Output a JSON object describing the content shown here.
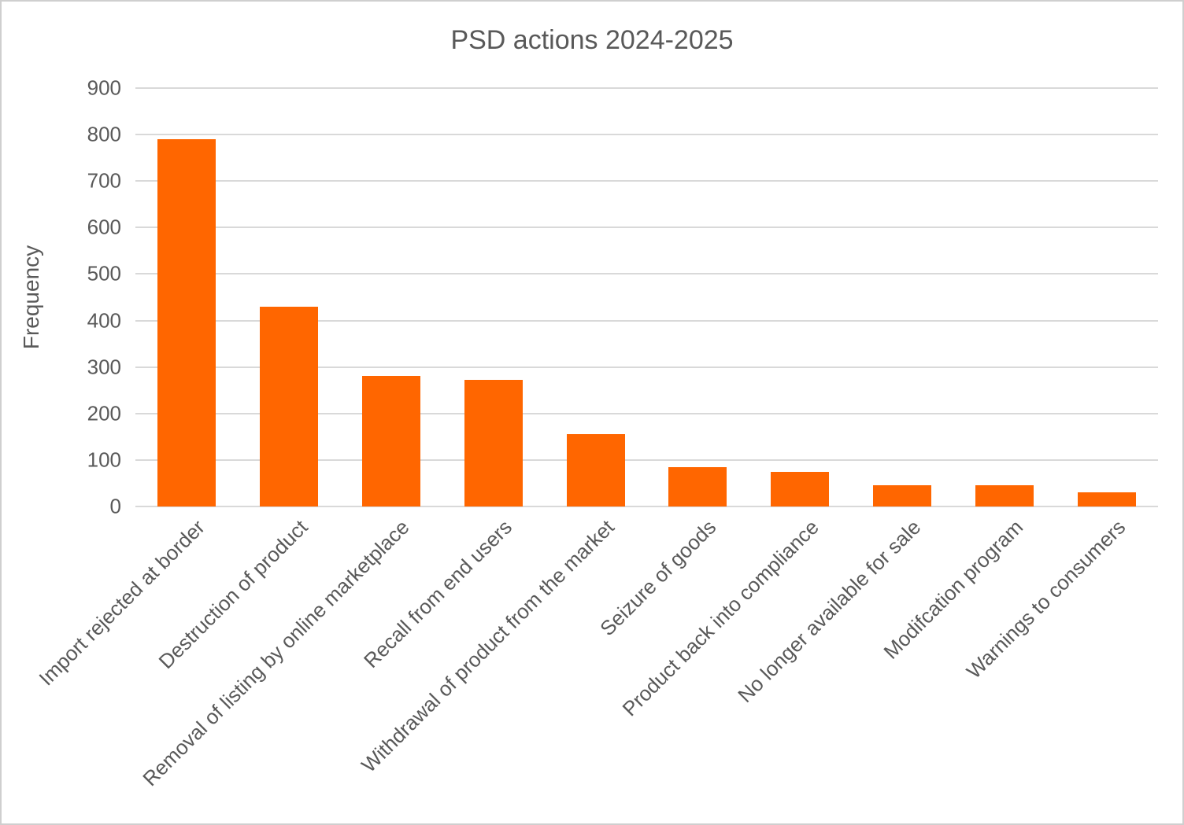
{
  "chart_data": {
    "type": "bar",
    "title": "PSD actions 2024-2025",
    "xlabel": "",
    "ylabel": "Frequency",
    "categories": [
      "Import rejected at border",
      "Destruction of product",
      "Removal of listing by online marketplace",
      "Recall from end users",
      "Withdrawal of product from the market",
      "Seizure of goods",
      "Product back into compliance",
      "No longer available for sale",
      "Modifcation program",
      "Warnings to consumers"
    ],
    "values": [
      790,
      430,
      280,
      273,
      155,
      85,
      75,
      46,
      45,
      30
    ],
    "ylim": [
      0,
      900
    ],
    "yticks": [
      0,
      100,
      200,
      300,
      400,
      500,
      600,
      700,
      800,
      900
    ],
    "grid": true,
    "legend": false,
    "x_labels_rotation_deg": 45,
    "bar_color": "#FF6600",
    "text_color": "#595959",
    "gridline_color": "#D9D9D9"
  }
}
